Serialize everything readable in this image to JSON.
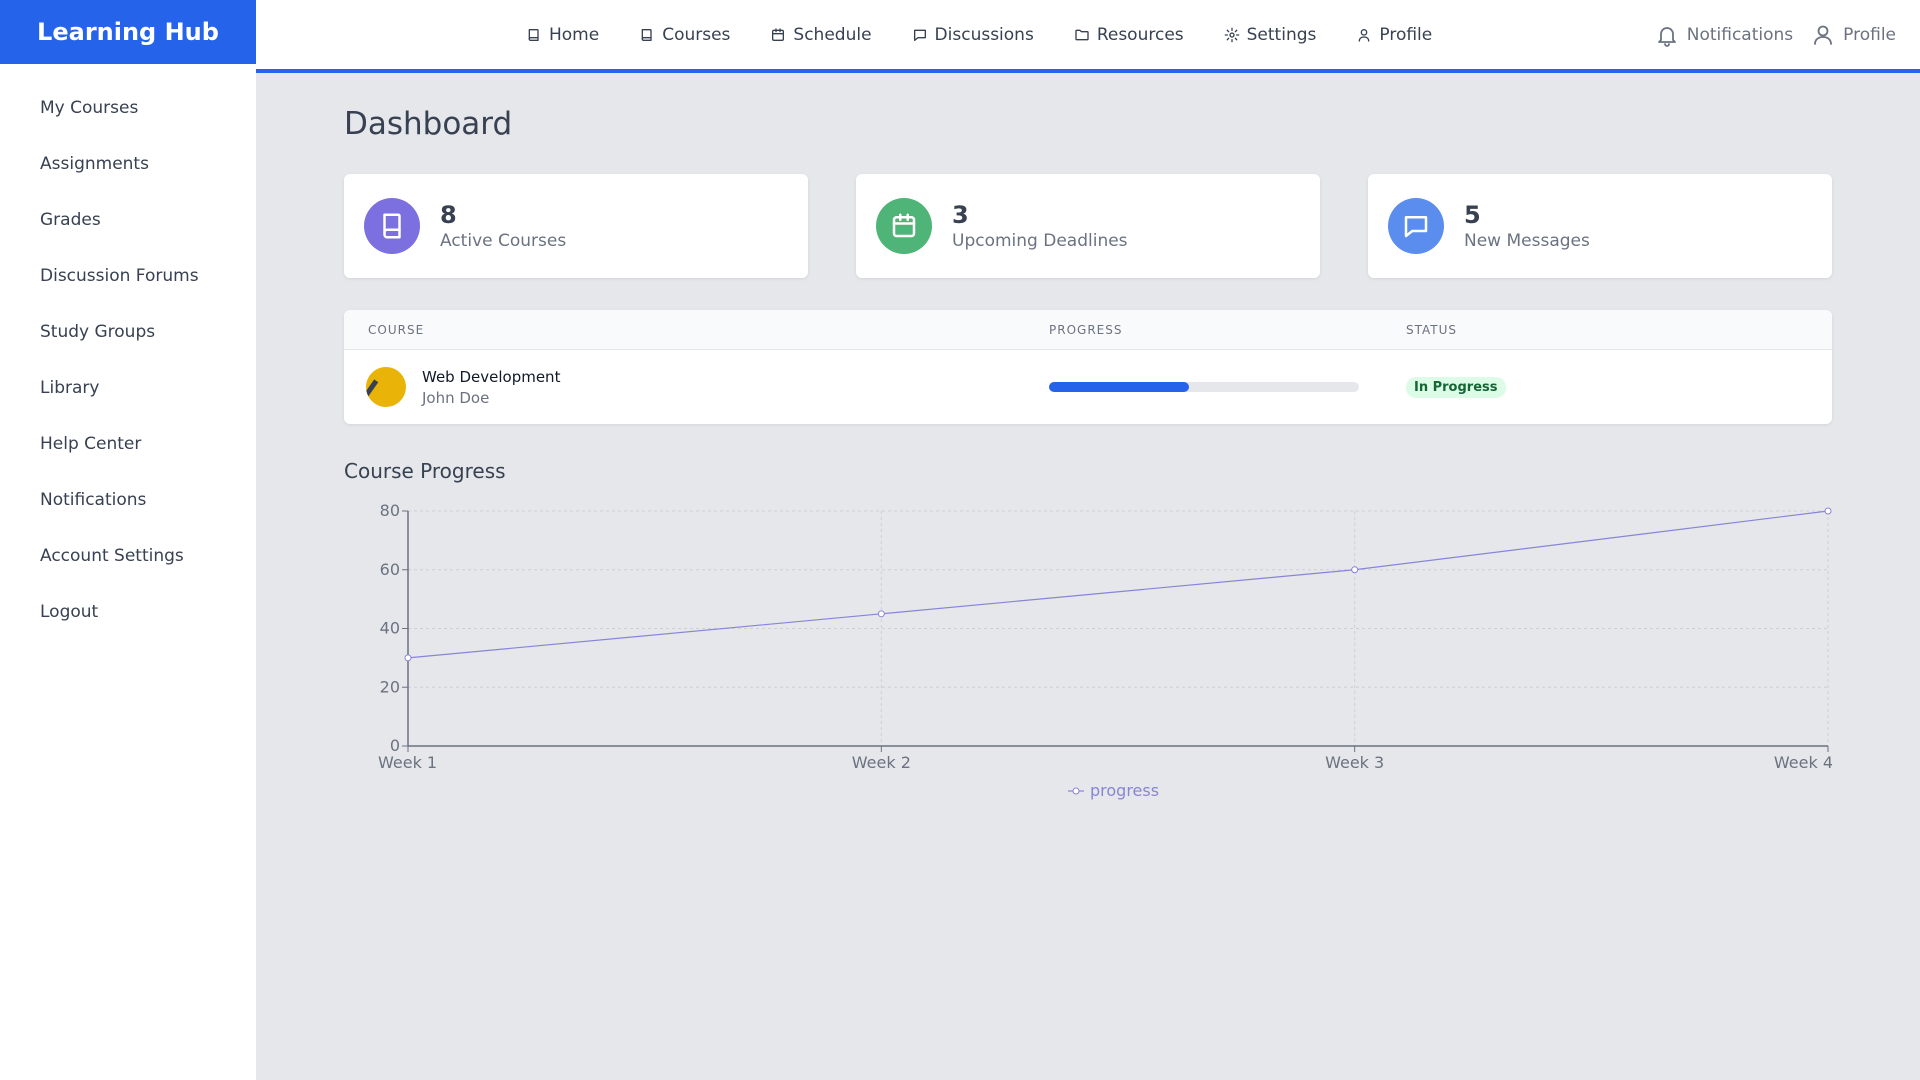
{
  "brand": {
    "name": "Learning Hub"
  },
  "sidebar": {
    "items": [
      {
        "label": "My Courses"
      },
      {
        "label": "Assignments"
      },
      {
        "label": "Grades"
      },
      {
        "label": "Discussion Forums"
      },
      {
        "label": "Study Groups"
      },
      {
        "label": "Library"
      },
      {
        "label": "Help Center"
      },
      {
        "label": "Notifications"
      },
      {
        "label": "Account Settings"
      },
      {
        "label": "Logout"
      }
    ]
  },
  "topnav": {
    "items": [
      {
        "label": "Home",
        "icon": "book-icon"
      },
      {
        "label": "Courses",
        "icon": "book-icon"
      },
      {
        "label": "Schedule",
        "icon": "calendar-icon"
      },
      {
        "label": "Discussions",
        "icon": "message-icon"
      },
      {
        "label": "Resources",
        "icon": "folder-icon"
      },
      {
        "label": "Settings",
        "icon": "gear-icon"
      },
      {
        "label": "Profile",
        "icon": "user-icon"
      }
    ],
    "right": {
      "notifications_label": "Notifications",
      "profile_label": "Profile"
    }
  },
  "main": {
    "title": "Dashboard",
    "stats": [
      {
        "value": "8",
        "label": "Active Courses",
        "icon": "book-icon",
        "color": "#7c6fe0"
      },
      {
        "value": "3",
        "label": "Upcoming Deadlines",
        "icon": "calendar-icon",
        "color": "#4fb477"
      },
      {
        "value": "5",
        "label": "New Messages",
        "icon": "message-icon",
        "color": "#5b8def"
      }
    ],
    "table": {
      "headers": {
        "course": "COURSE",
        "progress": "PROGRESS",
        "status": "STATUS"
      },
      "rows": [
        {
          "course": "Web Development",
          "instructor": "John Doe",
          "progress": 0.45,
          "status": "In Progress"
        }
      ]
    },
    "chart_title": "Course Progress"
  },
  "colors": {
    "accent": "#2563eb",
    "line": "#8884d8",
    "sidebar_bg": "#ffffff",
    "content_bg": "#e5e7eb"
  },
  "chart_data": {
    "type": "line",
    "categories": [
      "Week 1",
      "Week 2",
      "Week 3",
      "Week 4"
    ],
    "series": [
      {
        "name": "progress",
        "values": [
          30,
          45,
          60,
          80
        ]
      }
    ],
    "ylim": [
      0,
      80
    ],
    "yticks": [
      0,
      20,
      40,
      60,
      80
    ],
    "grid": true,
    "legend": "bottom-center"
  }
}
